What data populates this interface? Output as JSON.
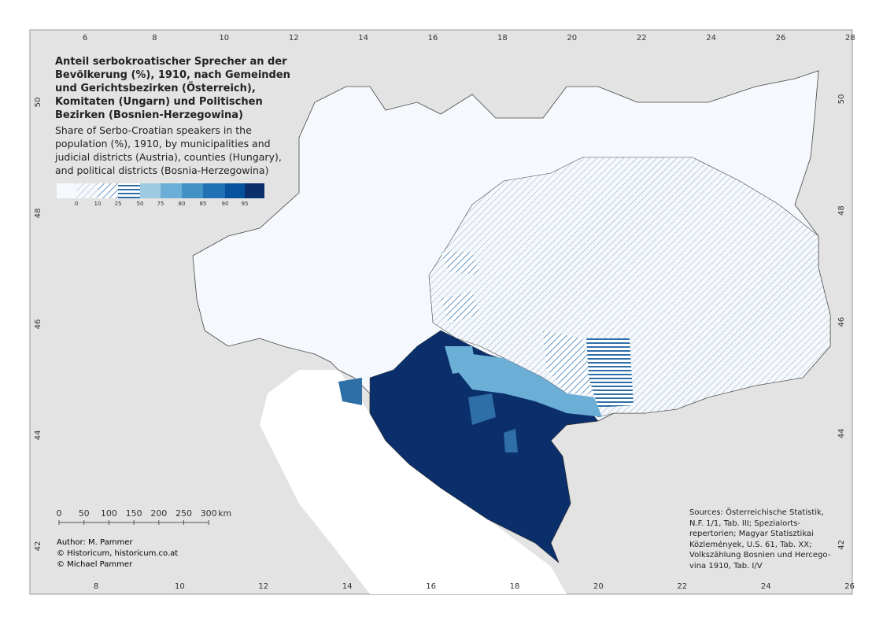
{
  "title": "Anteil serbokroatischer Sprecher an der Bevölkerung (%), 1910, nach Gemeinden und Gerichtsbezirken (Österreich), Komitaten (Ungarn) und Politischen Bezirken (Bosnien-Herzegowina)",
  "subtitle": "Share of Serbo-Croatian speakers in the population (%), 1910, by municipalities and judicial districts (Austria), counties (Hungary), and political districts (Bosnia-Herzegowina)",
  "legend": {
    "breaks": [
      0,
      10,
      25,
      50,
      75,
      80,
      85,
      90,
      95
    ]
  },
  "graticule": {
    "top": [
      6,
      8,
      10,
      12,
      14,
      16,
      18,
      20,
      22,
      24,
      26,
      28
    ],
    "bottom": [
      8,
      10,
      12,
      14,
      16,
      18,
      20,
      22,
      24,
      26
    ],
    "left": [
      50,
      48,
      46,
      44,
      42
    ],
    "right": [
      50,
      48,
      46,
      44,
      42
    ]
  },
  "scale_bar": {
    "labels": [
      0,
      50,
      100,
      150,
      200,
      250,
      300
    ],
    "unit": "km"
  },
  "credits": [
    "Author: M. Pammer",
    "© Historicum, historicum.co.at",
    "© Michael Pammer"
  ],
  "sources": "Sources: Österreichische Statistik, N.F. 1/1, Tab. III; Spezialorts-repertorien; Magyar Statisztikai Közlemények, U.S. 61, Tab. XX; Volkszählung Bosnien und Hercego-vina 1910, Tab. I/V"
}
